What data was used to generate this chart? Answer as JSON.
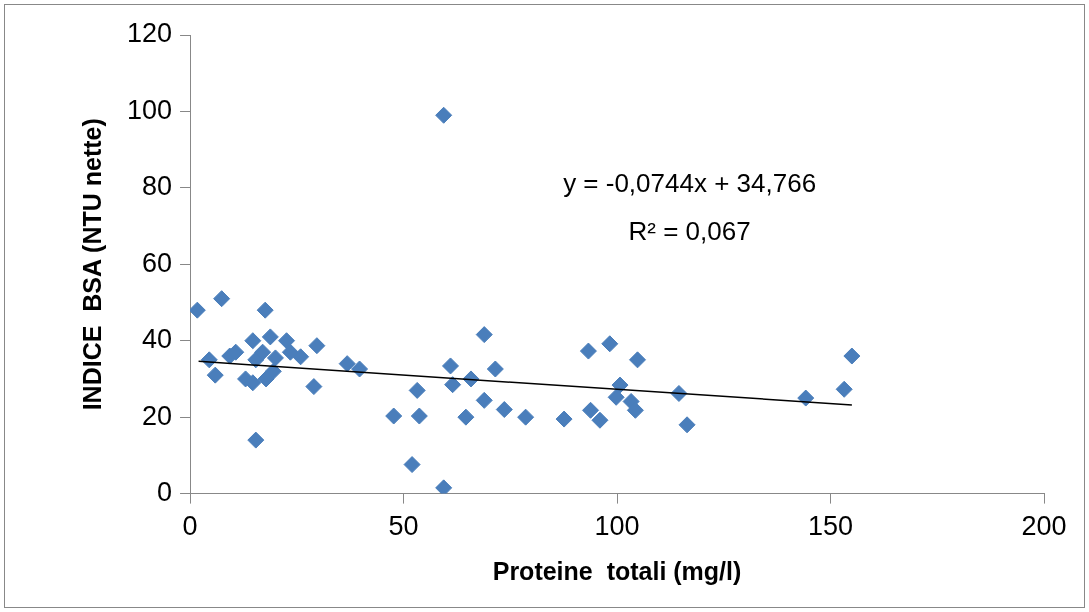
{
  "chart_data": {
    "type": "scatter",
    "xlabel": "Proteine  totali (mg/l)",
    "ylabel": "INDICE  BSA (NTU nette)",
    "xlim": [
      0,
      200
    ],
    "xticks": [
      0,
      50,
      100,
      150,
      200
    ],
    "ylim": [
      0,
      120
    ],
    "yticks": [
      0,
      20,
      40,
      60,
      80,
      100,
      120
    ],
    "grid": false,
    "legend": false,
    "annotations": [
      "y = -0,0744x + 34,766",
      "R² = 0,067"
    ],
    "series": [
      {
        "color": "#4a7ebb",
        "marker": "diamond",
        "x": [
          1.7,
          7.4,
          17.6,
          59.4,
          59.4,
          15.4,
          18.8,
          22.6,
          29.7,
          25.9,
          23.5,
          4.5,
          5.9,
          9.3,
          10.7,
          14.7,
          15.4,
          13,
          14.7,
          17.8,
          19.5,
          17,
          20,
          29,
          36.8,
          39.7,
          53.2,
          47.7,
          53.7,
          52,
          61,
          61.5,
          65.8,
          68.9,
          71.5,
          68.9,
          64.6,
          73.6,
          78.6,
          87.6,
          93.3,
          98.3,
          104.8,
          100.7,
          99.8,
          93.8,
          96,
          103.3,
          104.3,
          114.5,
          116.4,
          155,
          153.2,
          144.2
        ],
        "values": [
          48,
          51,
          48,
          99,
          1.5,
          14,
          41,
          40,
          38.7,
          35.8,
          37,
          35,
          31,
          36,
          37,
          40,
          35,
          30,
          29,
          30,
          32,
          37,
          35.5,
          28,
          34,
          32.6,
          27,
          20.3,
          20.3,
          7.6,
          33.4,
          28.5,
          30,
          41.6,
          32.6,
          24.4,
          20,
          22,
          20,
          19.5,
          37.3,
          39.2,
          35,
          28.4,
          25.2,
          21.8,
          19.2,
          24.1,
          21.8,
          26.2,
          18,
          36,
          27.3,
          25
        ]
      },
      {
        "color": "#000000",
        "type": "line",
        "marker": "none",
        "x": [
          2,
          155
        ],
        "values": [
          34.6,
          23.2
        ]
      }
    ]
  }
}
